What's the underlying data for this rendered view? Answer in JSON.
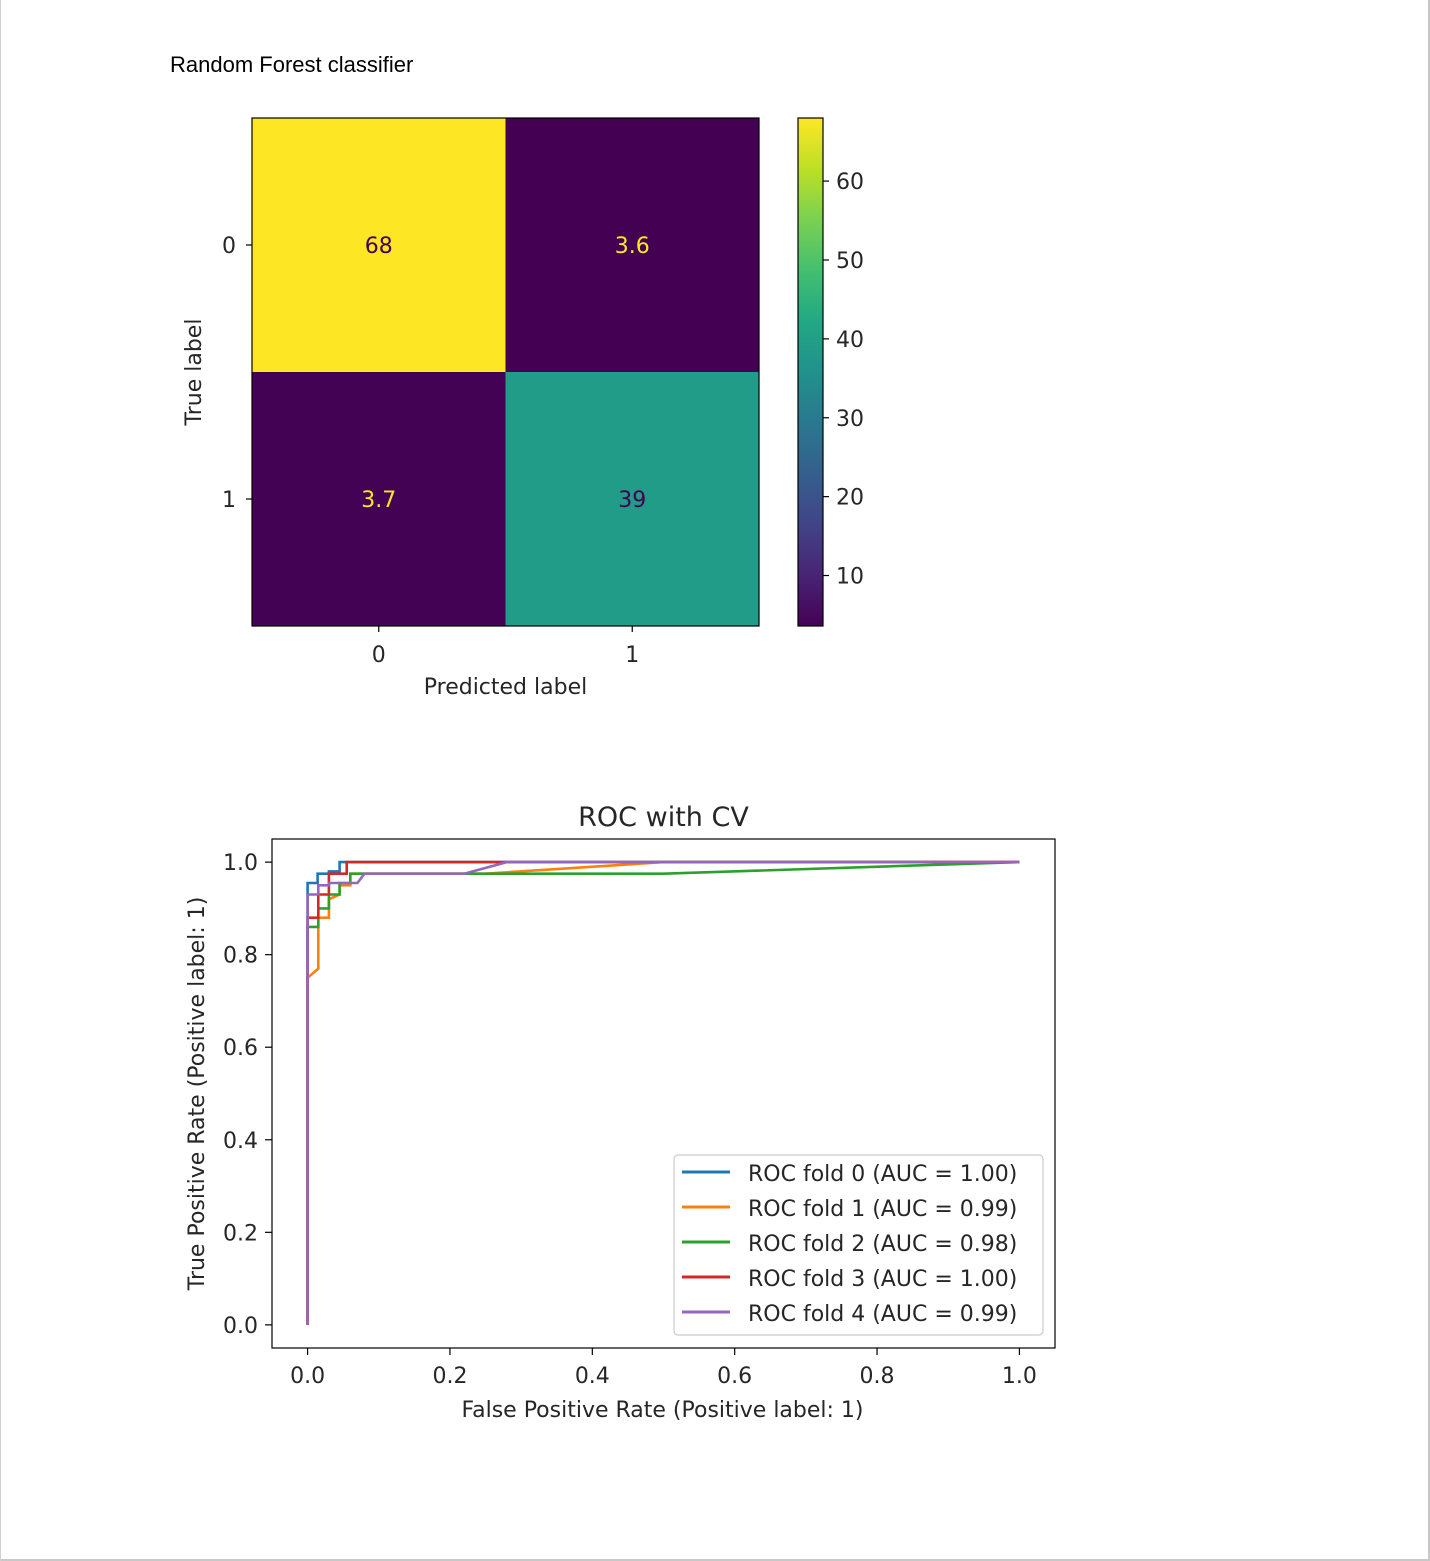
{
  "document": {
    "heading": "Random Forest classifier"
  },
  "chart_data": [
    {
      "type": "heatmap",
      "title": "",
      "xlabel": "Predicted label",
      "ylabel": "True label",
      "x_ticklabels": [
        "0",
        "1"
      ],
      "y_ticklabels": [
        "0",
        "1"
      ],
      "values": [
        [
          68,
          3.6
        ],
        [
          3.7,
          39
        ]
      ],
      "cell_labels": [
        [
          "68",
          "3.6"
        ],
        [
          "3.7",
          "39"
        ]
      ],
      "colormap": "viridis",
      "colorbar": {
        "range": [
          3.6,
          68
        ],
        "ticks": [
          10,
          20,
          30,
          40,
          50,
          60
        ],
        "ticklabels": [
          "10",
          "20",
          "30",
          "40",
          "50",
          "60"
        ]
      }
    },
    {
      "type": "line",
      "title": "ROC with CV",
      "xlabel": "False Positive Rate (Positive label: 1)",
      "ylabel": "True Positive Rate (Positive label: 1)",
      "xlim": [
        -0.05,
        1.05
      ],
      "ylim": [
        -0.05,
        1.05
      ],
      "xticks": [
        "0.0",
        "0.2",
        "0.4",
        "0.6",
        "0.8",
        "1.0"
      ],
      "yticks": [
        "0.0",
        "0.2",
        "0.4",
        "0.6",
        "0.8",
        "1.0"
      ],
      "legend_position": "lower-right",
      "series": [
        {
          "name": "ROC fold 0 (AUC = 1.00)",
          "color": "#1f77b4",
          "x": [
            0,
            0,
            0,
            0.014,
            0.014,
            0.03,
            0.03,
            0.045,
            0.045,
            1.0
          ],
          "y": [
            0,
            0.95,
            0.955,
            0.955,
            0.975,
            0.975,
            0.98,
            0.98,
            1.0,
            1.0
          ]
        },
        {
          "name": "ROC fold 1 (AUC = 0.99)",
          "color": "#ff7f0e",
          "x": [
            0,
            0,
            0.015,
            0.015,
            0.03,
            0.03,
            0.045,
            0.045,
            0.06,
            0.06,
            0.25,
            0.5,
            1.0
          ],
          "y": [
            0,
            0.75,
            0.77,
            0.88,
            0.88,
            0.92,
            0.93,
            0.95,
            0.95,
            0.975,
            0.975,
            1.0,
            1.0
          ]
        },
        {
          "name": "ROC fold 2 (AUC = 0.98)",
          "color": "#2ca02c",
          "x": [
            0,
            0,
            0.015,
            0.015,
            0.03,
            0.03,
            0.045,
            0.045,
            0.06,
            0.06,
            0.5,
            1.0
          ],
          "y": [
            0,
            0.86,
            0.86,
            0.9,
            0.9,
            0.93,
            0.93,
            0.955,
            0.955,
            0.975,
            0.975,
            1.0
          ]
        },
        {
          "name": "ROC fold 3 (AUC = 1.00)",
          "color": "#d62728",
          "x": [
            0,
            0,
            0.015,
            0.015,
            0.03,
            0.03,
            0.055,
            0.055,
            1.0
          ],
          "y": [
            0,
            0.88,
            0.88,
            0.93,
            0.93,
            0.975,
            0.975,
            1.0,
            1.0
          ]
        },
        {
          "name": "ROC fold 4 (AUC = 0.99)",
          "color": "#9467bd",
          "x": [
            0,
            0,
            0.015,
            0.015,
            0.03,
            0.03,
            0.07,
            0.08,
            0.22,
            0.28,
            1.0
          ],
          "y": [
            0,
            0.93,
            0.93,
            0.95,
            0.95,
            0.955,
            0.955,
            0.975,
            0.975,
            1.0,
            1.0
          ]
        }
      ]
    }
  ]
}
